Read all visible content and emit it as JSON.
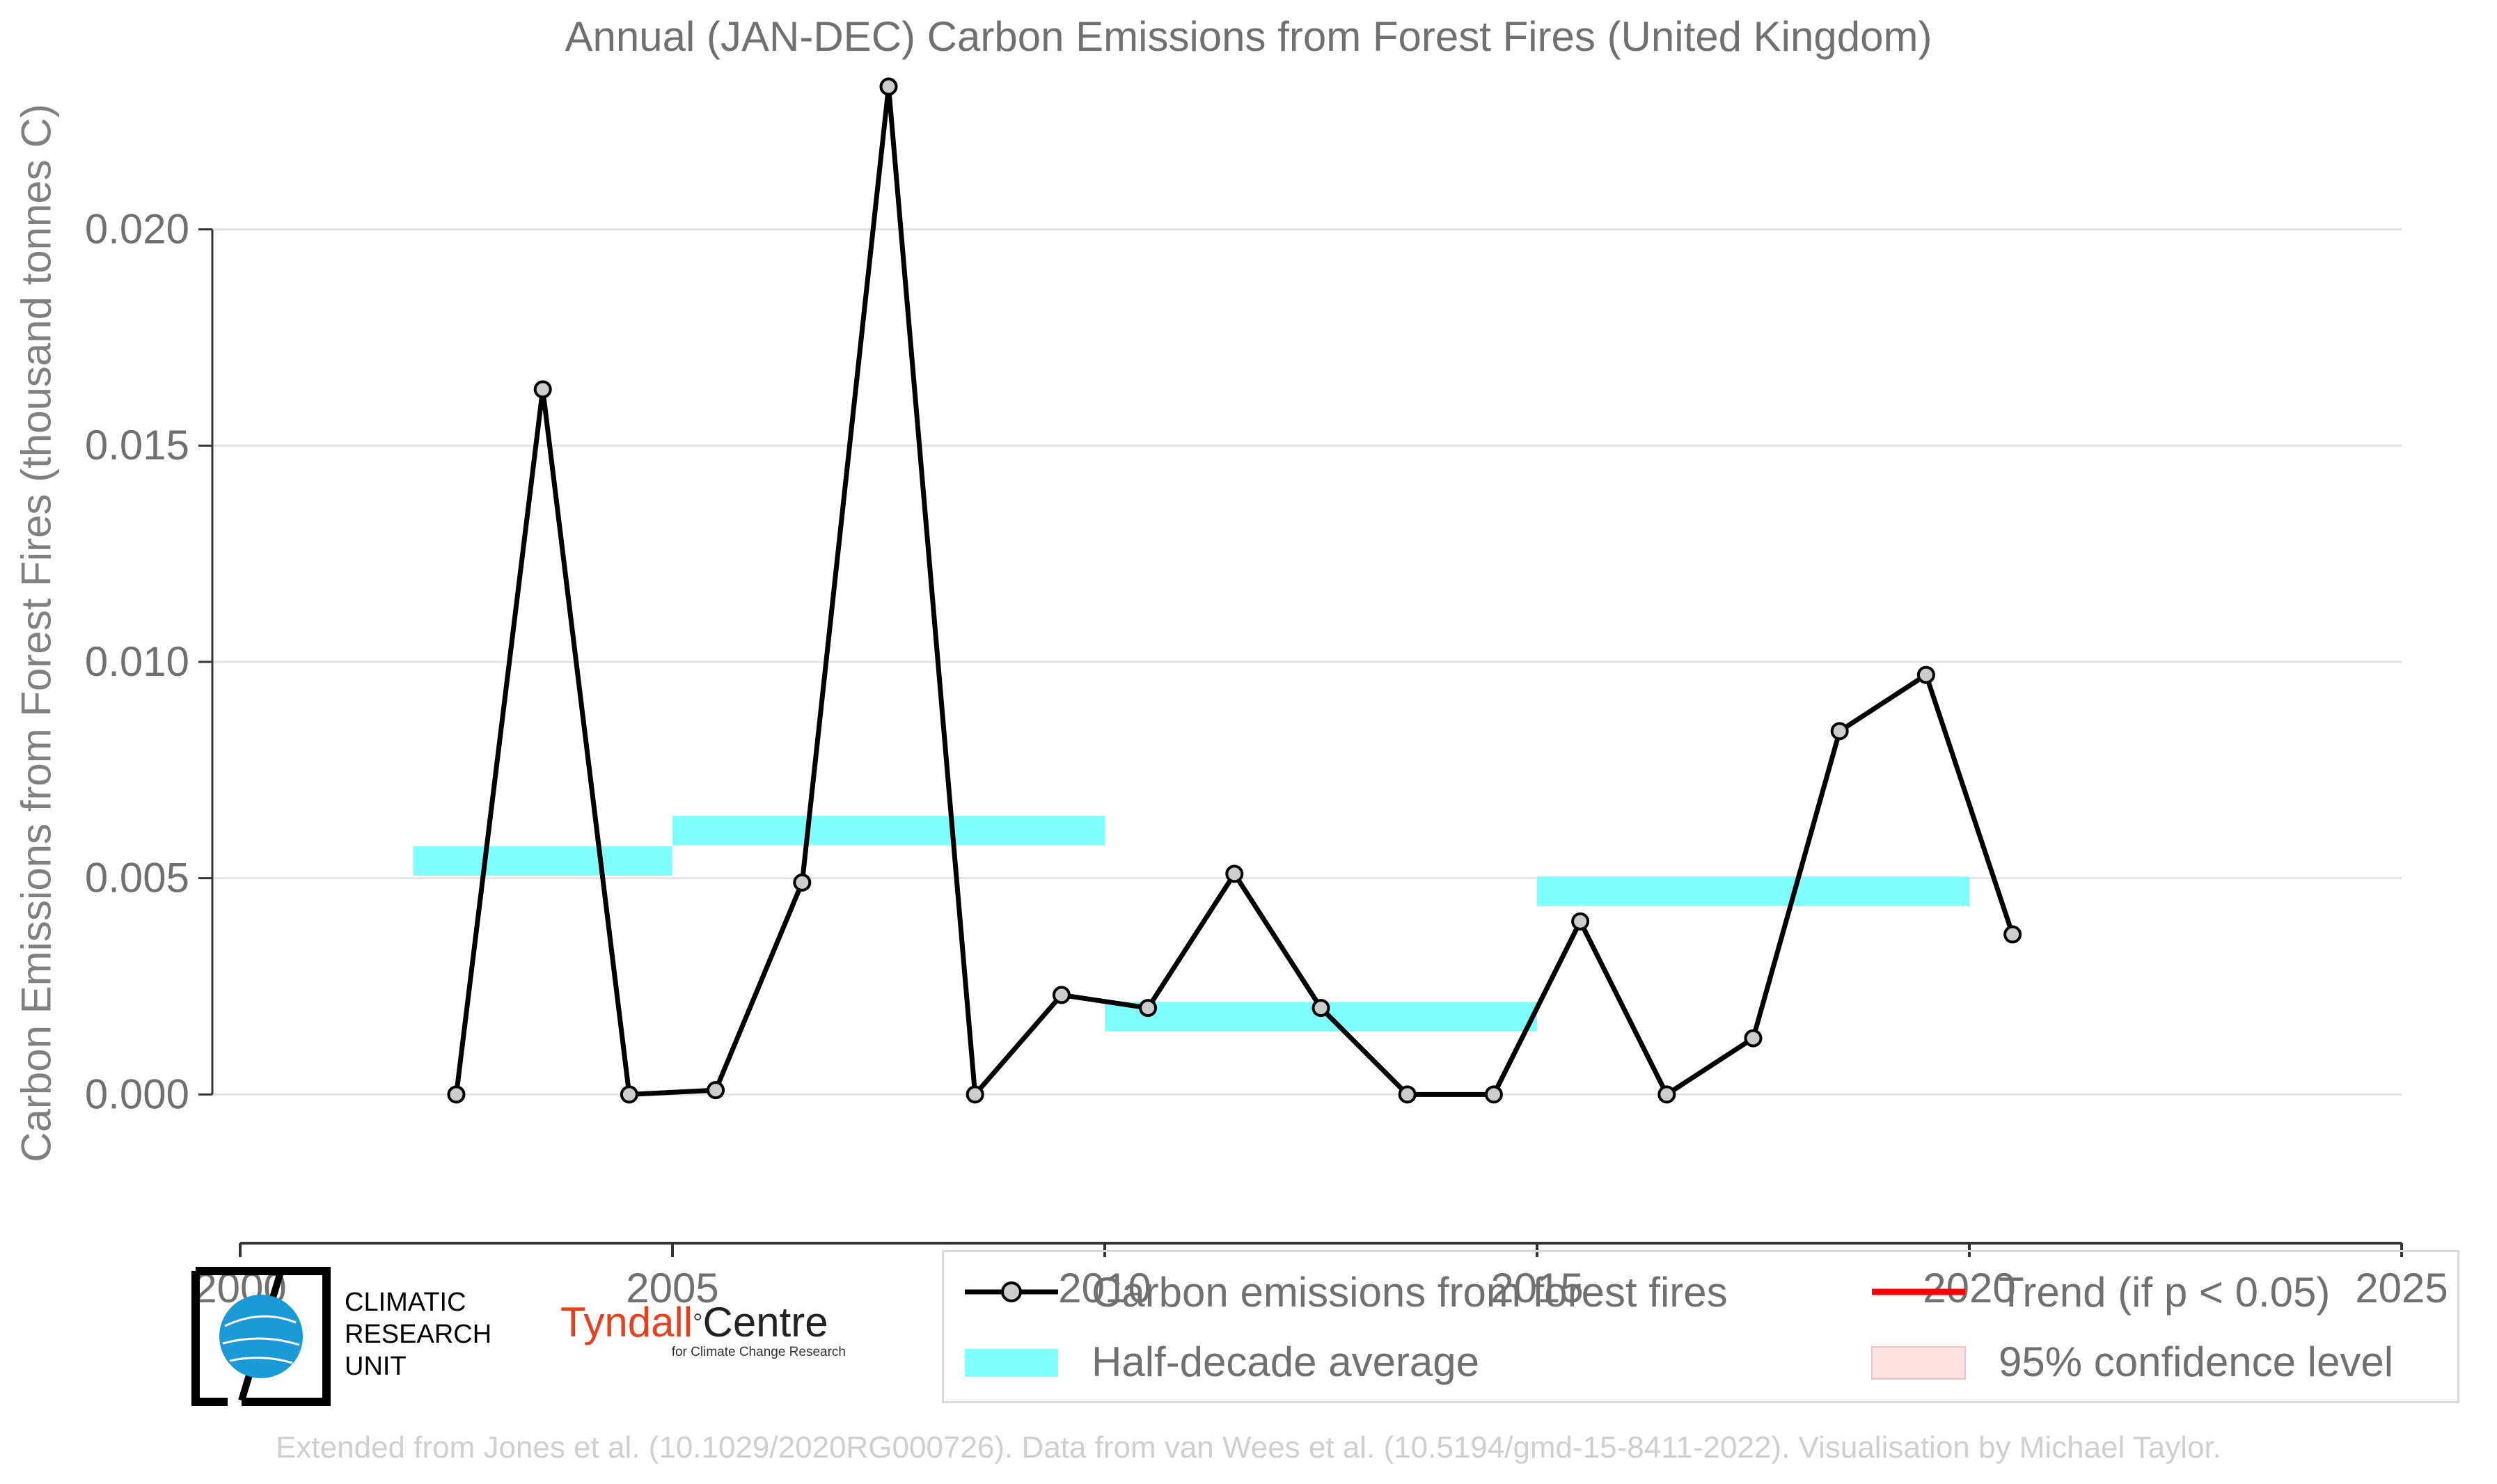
{
  "chart_data": {
    "type": "line",
    "title": "Annual (JAN-DEC) Carbon Emissions from Forest Fires (United Kingdom)",
    "xlabel": "",
    "ylabel": "Carbon Emissions from Forest Fires (thousand tonnes C)",
    "xlim": [
      2000,
      2025
    ],
    "ylim": [
      -0.0017,
      0.0235
    ],
    "xticks": [
      2000,
      2005,
      2010,
      2015,
      2020,
      2025
    ],
    "yticks": [
      0.0,
      0.005,
      0.01,
      0.015,
      0.02
    ],
    "ytick_labels": [
      "0.000",
      "0.005",
      "0.010",
      "0.015",
      "0.020"
    ],
    "grid": "horizontal",
    "series": [
      {
        "name": "Carbon emissions from forest fires",
        "color": "#000000",
        "marker_fill": "#cccccc",
        "x": [
          2002.5,
          2003.5,
          2004.5,
          2005.5,
          2006.5,
          2007.5,
          2008.5,
          2009.5,
          2010.5,
          2011.5,
          2012.5,
          2013.5,
          2014.5,
          2015.5,
          2016.5,
          2017.5,
          2018.5,
          2019.5,
          2020.5
        ],
        "y": [
          0.0,
          0.0163,
          0.0,
          0.0001,
          0.0049,
          0.0233,
          0.0,
          0.0023,
          0.002,
          0.0051,
          0.002,
          0.0,
          0.0,
          0.004,
          0.0,
          0.0013,
          0.0084,
          0.0097,
          0.0037
        ]
      }
    ],
    "half_decade_averages": {
      "name": "Half-decade average",
      "color": "#7fffff",
      "bands": [
        {
          "x0": 2002,
          "x1": 2005,
          "y": 0.0054
        },
        {
          "x0": 2005,
          "x1": 2010,
          "y": 0.0061
        },
        {
          "x0": 2010,
          "x1": 2015,
          "y": 0.0018
        },
        {
          "x0": 2015,
          "x1": 2020,
          "y": 0.0047
        }
      ]
    },
    "legend": {
      "placement": "bottom",
      "entries": [
        {
          "label": "Carbon emissions from forest fires",
          "color": "#000000",
          "kind": "line-marker"
        },
        {
          "label": "Trend (if p < 0.05)",
          "color": "#ff0000",
          "kind": "line"
        },
        {
          "label": "Half-decade average",
          "color": "#7fffff",
          "kind": "patch"
        },
        {
          "label": "95% confidence level",
          "color": "#fde0e0",
          "kind": "patch"
        }
      ]
    }
  },
  "logos": {
    "cru": {
      "line1": "CLIMATIC",
      "line2": "RESEARCH",
      "line3": "UNIT"
    },
    "tyndall": {
      "name_red": "Tyndall",
      "name_black": "Centre",
      "sub": "for Climate Change Research"
    }
  },
  "credit": "Extended from Jones et al. (10.1029/2020RG000726). Data from van Wees et al. (10.5194/gmd-15-8411-2022). Visualisation by Michael Taylor."
}
